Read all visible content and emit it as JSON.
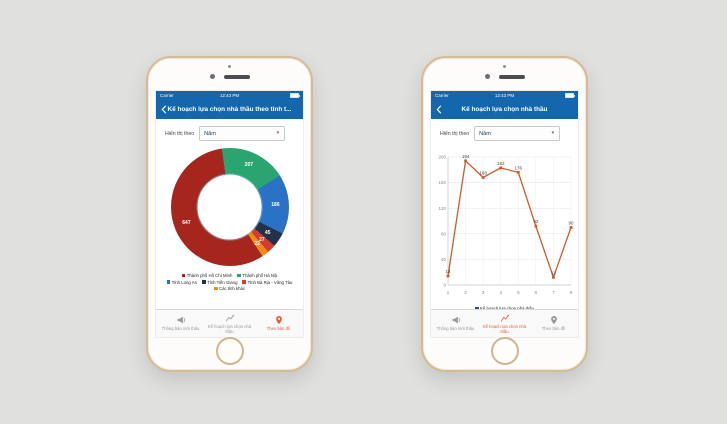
{
  "canvas": {
    "background": "#e0e0df"
  },
  "colors": {
    "navbar_blue": "#1467ad",
    "active_tab_orange": "#e0603d",
    "inactive_tab_gray": "#97979c",
    "dropdown_caret_red": "#c0392b",
    "line_orange": "#cd5b2b"
  },
  "status": {
    "carrier": "Carrier",
    "time": "12:43 PM"
  },
  "tabs": [
    {
      "label": "Thông báo mời thầu"
    },
    {
      "label": "Kế hoạch lựa chọn nhà thầu"
    },
    {
      "label": "Theo bản đồ"
    }
  ],
  "phones": [
    {
      "nav_title": "Kế hoạch lựa chọn nhà thầu theo tỉnh t...",
      "filter": {
        "label": "Hiển thị theo",
        "value": "Năm"
      },
      "legend": [
        {
          "label": "Thành phố Hồ Chí Minh",
          "color": "#a6251d"
        },
        {
          "label": "Thành phố Hà Nội",
          "color": "#2aa571"
        },
        {
          "label": "Tỉnh Long An",
          "color": "#2a72c5"
        },
        {
          "label": "Tỉnh Tiền Giang",
          "color": "#233247"
        },
        {
          "label": "Tỉnh Bà Rịa - Vũng Tàu",
          "color": "#d63b2f"
        },
        {
          "label": "Các tỉnh khác",
          "color": "#ee8a1e"
        }
      ]
    },
    {
      "nav_title": "Kế hoạch lựa chọn nhà thầu",
      "filter": {
        "label": "Hiển thị theo",
        "value": "Năm"
      },
      "legend": [
        {
          "label": "Kế hoạch lựa chọn nhà thầu",
          "color": "#2f4f7f"
        }
      ]
    }
  ],
  "chart_data": [
    {
      "type": "pie",
      "donut_hole": 0.55,
      "start_angle": -8,
      "segments": [
        {
          "name": "Thành phố Hà Nội",
          "value": 207,
          "color": "#2aa571"
        },
        {
          "name": "Tỉnh Long An",
          "value": 186,
          "color": "#2a72c5"
        },
        {
          "name": "Tỉnh Tiền Giang",
          "value": 45,
          "color": "#233247"
        },
        {
          "name": "Tỉnh Bà Rịa - Vũng Tàu",
          "value": 27,
          "color": "#d63b2f"
        },
        {
          "name": "Các tỉnh khác",
          "value": 22,
          "color": "#ee8a1e"
        },
        {
          "name": "Thành phố Hồ Chí Minh",
          "value": 647,
          "color": "#a6251d"
        }
      ]
    },
    {
      "type": "line",
      "series_name": "Kế hoạch lựa chọn nhà thầu",
      "color": "#cd5b2b",
      "x": [
        "1",
        "2",
        "3",
        "4",
        "5",
        "6",
        "7",
        "8"
      ],
      "values": [
        14,
        194,
        168,
        183,
        176,
        92,
        12,
        90
      ],
      "ylim": [
        0,
        200
      ],
      "yticks": [
        0,
        40,
        80,
        120,
        160,
        200
      ],
      "grid": true,
      "legend_position": "bottom"
    }
  ]
}
